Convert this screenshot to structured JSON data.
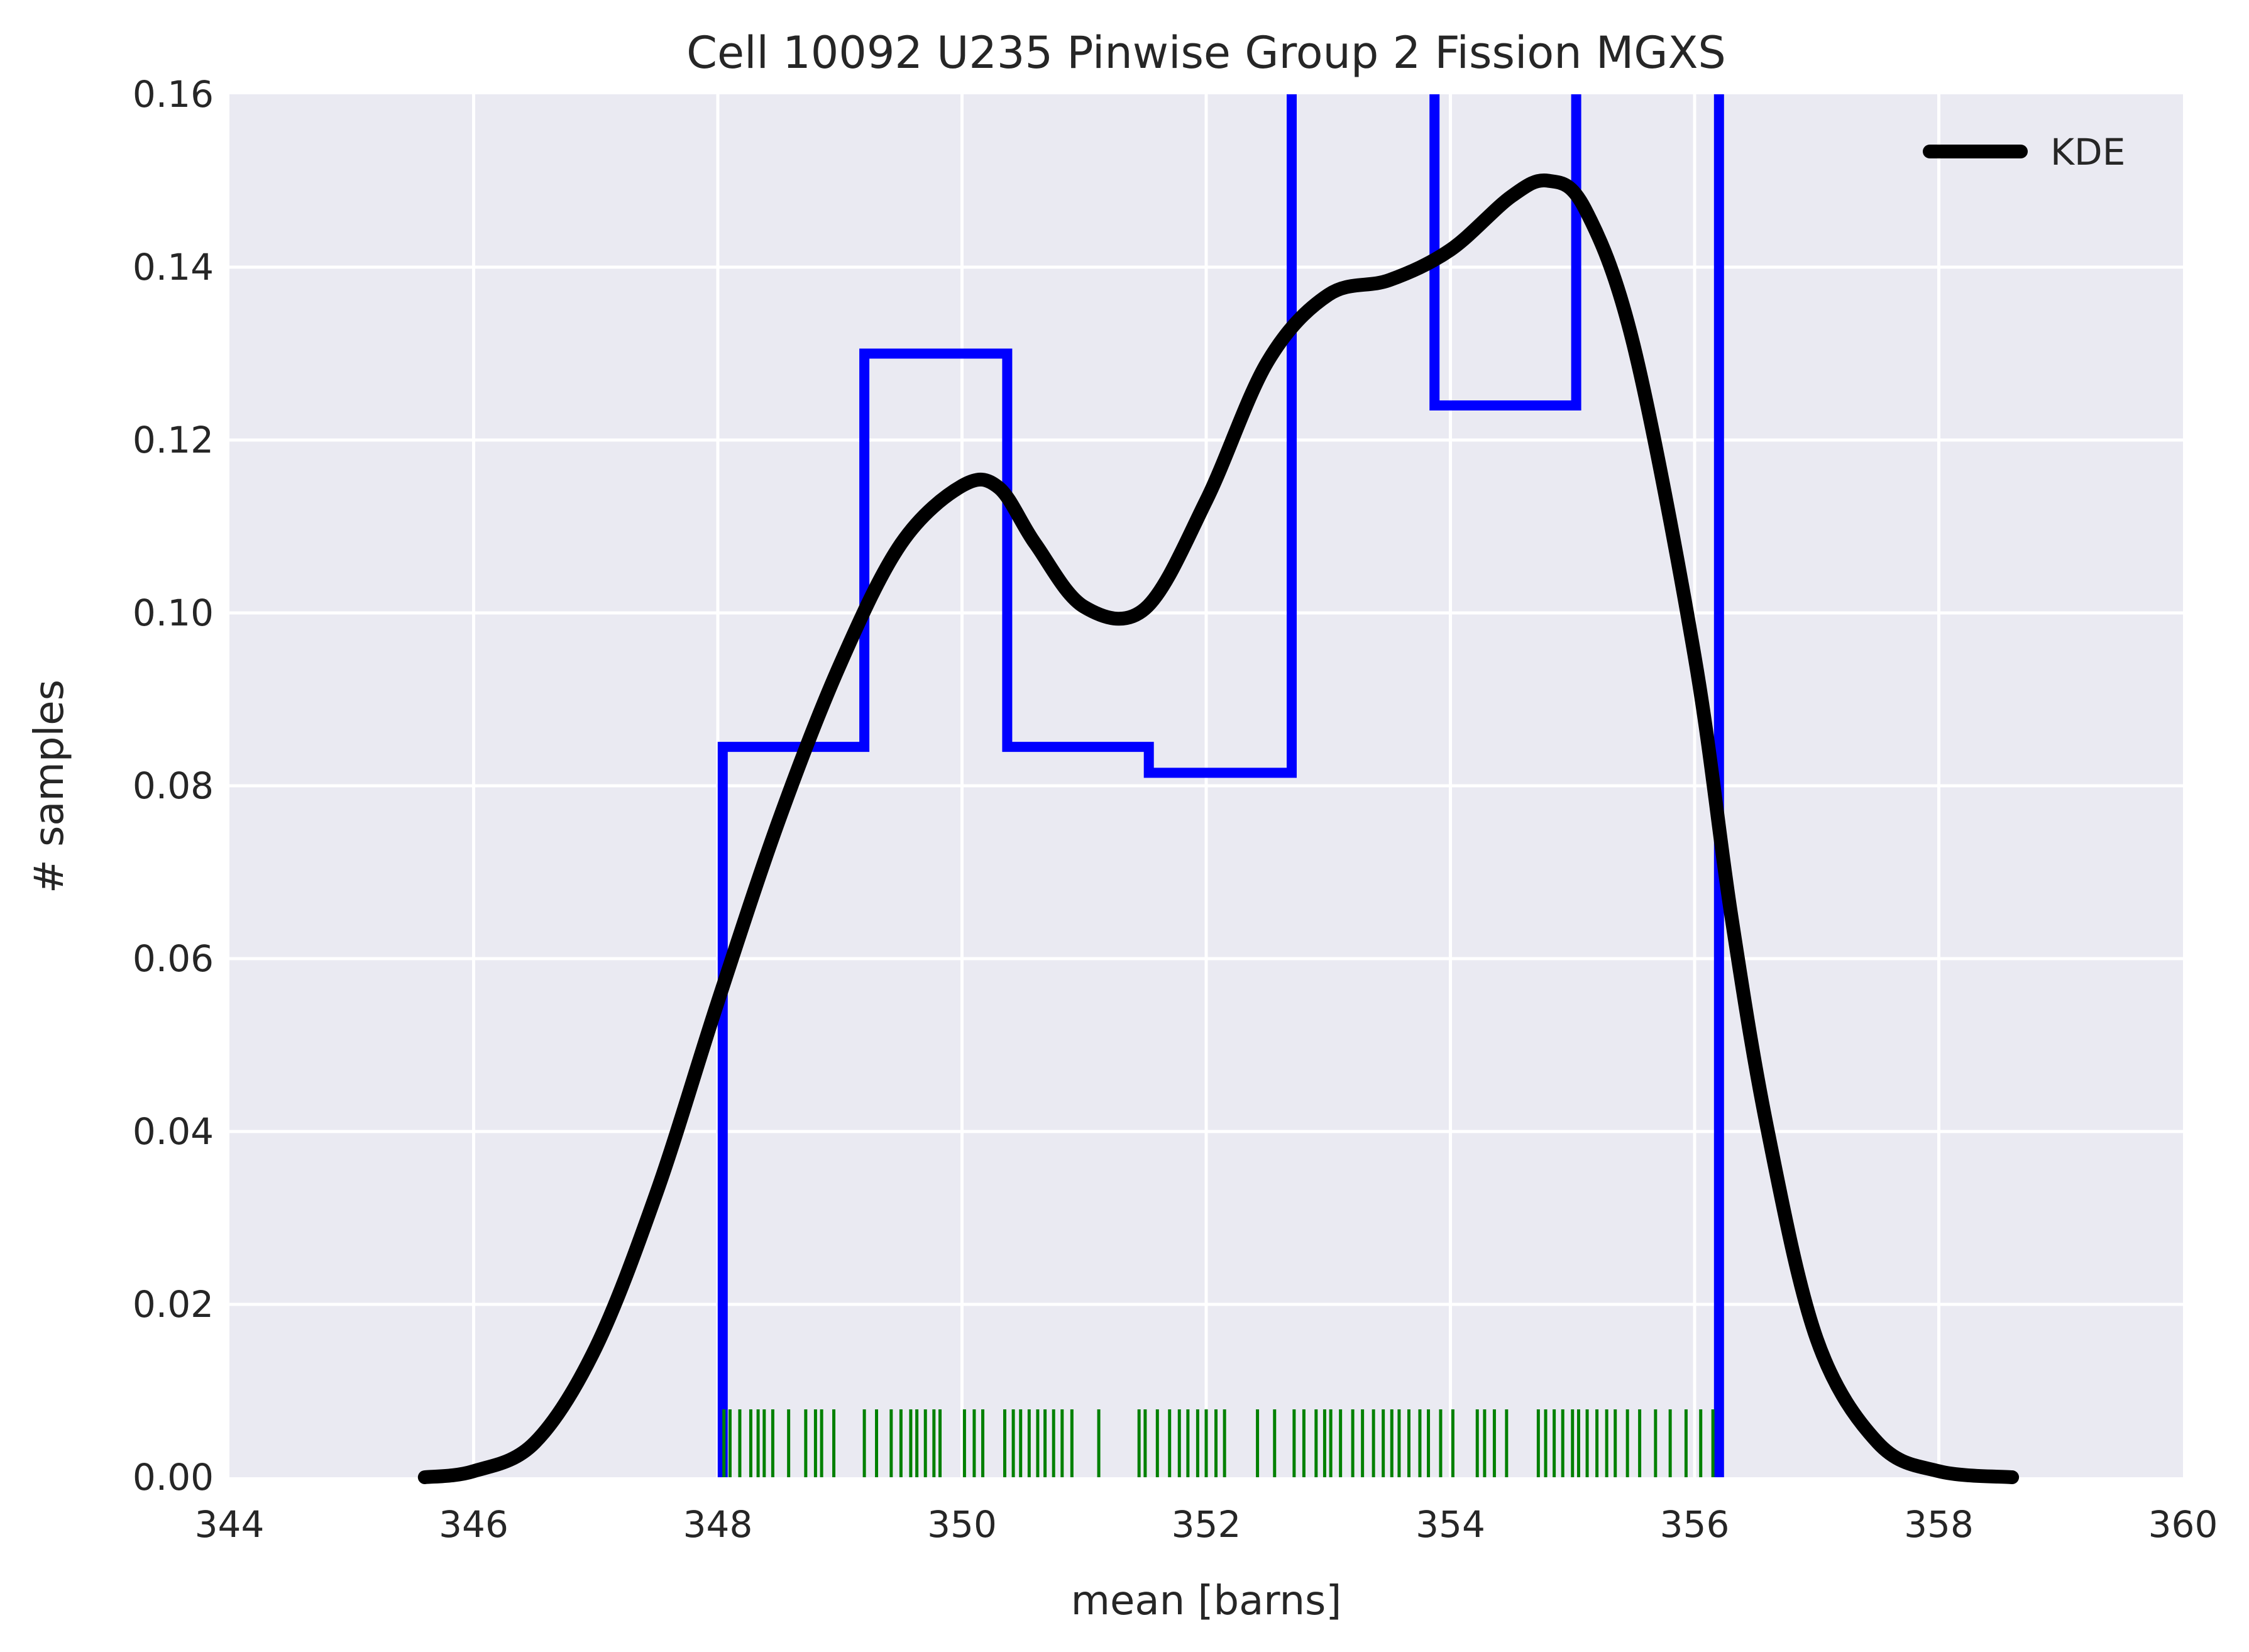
{
  "chart_data": {
    "type": "histogram",
    "title": "Cell 10092 U235 Pinwise Group 2 Fission MGXS",
    "xlabel": "mean [barns]",
    "ylabel": "# samples",
    "xlim": [
      344,
      360
    ],
    "ylim": [
      0,
      0.16
    ],
    "xticks": [
      344,
      346,
      348,
      350,
      352,
      354,
      356,
      358,
      360
    ],
    "xtick_labels": [
      "344",
      "346",
      "348",
      "350",
      "352",
      "354",
      "356",
      "358",
      "360"
    ],
    "yticks": [
      0,
      0.02,
      0.04,
      0.06,
      0.08,
      0.1,
      0.12,
      0.14,
      0.16
    ],
    "ytick_labels": [
      "0.00",
      "0.02",
      "0.04",
      "0.06",
      "0.08",
      "0.10",
      "0.12",
      "0.14",
      "0.16"
    ],
    "grid": true,
    "legend_placement": "top-right",
    "background_color": "#eaeaf2",
    "histogram": {
      "color": "#0000ff",
      "bin_edges": [
        348.04,
        349.2,
        350.37,
        351.53,
        352.7,
        353.87,
        355.03,
        356.2
      ],
      "densities": [
        0.0845,
        0.13,
        0.0845,
        0.0815,
        0.215,
        0.124,
        0.215
      ]
    },
    "kde": {
      "name": "KDE",
      "color": "#000000",
      "x": [
        345.6,
        346.0,
        346.5,
        347.0,
        347.5,
        348.0,
        348.5,
        349.0,
        349.5,
        350.0,
        350.3,
        350.6,
        351.0,
        351.5,
        352.0,
        352.5,
        353.0,
        353.5,
        354.0,
        354.5,
        354.8,
        355.1,
        355.5,
        356.0,
        356.3,
        356.6,
        357.0,
        357.5,
        358.0,
        358.6
      ],
      "y": [
        0.0,
        0.0007,
        0.004,
        0.015,
        0.033,
        0.055,
        0.076,
        0.094,
        0.108,
        0.1147,
        0.1145,
        0.108,
        0.1007,
        0.1005,
        0.113,
        0.129,
        0.1368,
        0.1385,
        0.142,
        0.1482,
        0.15,
        0.1468,
        0.131,
        0.095,
        0.065,
        0.04,
        0.016,
        0.004,
        0.0007,
        0.0
      ],
      "stroke_width": 22
    },
    "rug": {
      "color": "#008000",
      "x": [
        348.05,
        348.1,
        348.18,
        348.27,
        348.33,
        348.38,
        348.45,
        348.58,
        348.72,
        348.8,
        348.85,
        348.95,
        349.2,
        349.3,
        349.42,
        349.5,
        349.58,
        349.63,
        349.7,
        349.77,
        349.82,
        350.02,
        350.1,
        350.17,
        350.35,
        350.42,
        350.48,
        350.55,
        350.62,
        350.68,
        350.75,
        350.82,
        350.9,
        351.12,
        351.45,
        351.5,
        351.6,
        351.7,
        351.78,
        351.85,
        351.93,
        352.0,
        352.08,
        352.15,
        352.42,
        352.56,
        352.72,
        352.8,
        352.9,
        352.97,
        353.02,
        353.1,
        353.2,
        353.28,
        353.37,
        353.45,
        353.52,
        353.58,
        353.66,
        353.75,
        353.82,
        353.92,
        354.02,
        354.22,
        354.28,
        354.36,
        354.46,
        354.72,
        354.78,
        354.85,
        354.92,
        355.0,
        355.05,
        355.12,
        355.2,
        355.28,
        355.35,
        355.45,
        355.55,
        355.68,
        355.8,
        355.93,
        356.05,
        356.15
      ]
    }
  }
}
